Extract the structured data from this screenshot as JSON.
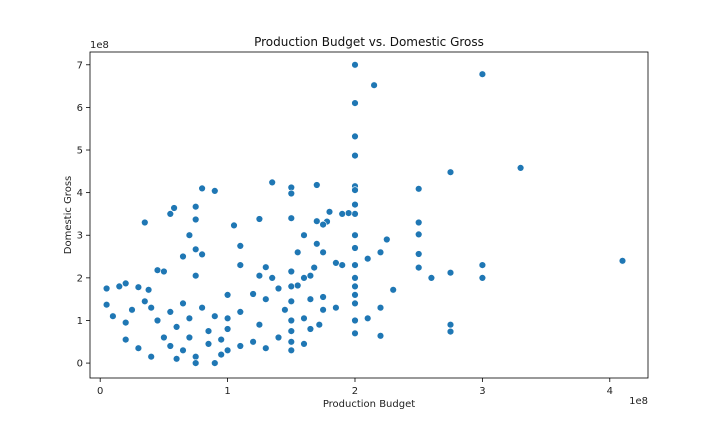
{
  "chart_data": {
    "type": "scatter",
    "title": "Production Budget vs. Domestic Gross",
    "xlabel": "Production Budget",
    "ylabel": "Domestic Gross",
    "x_offset_label": "1e8",
    "y_offset_label": "1e8",
    "xlim": [
      -0.08,
      4.3
    ],
    "ylim": [
      -0.35,
      7.3
    ],
    "x_ticks": [
      0,
      1,
      2,
      3,
      4
    ],
    "x_tick_labels": [
      "0",
      "1",
      "2",
      "3",
      "4"
    ],
    "y_ticks": [
      0,
      1,
      2,
      3,
      4,
      5,
      6,
      7
    ],
    "y_tick_labels": [
      "0",
      "1",
      "2",
      "3",
      "4",
      "5",
      "6",
      "7"
    ],
    "grid": false,
    "marker_color": "#1f77b4",
    "marker_edge_color": "#ffffff",
    "series": [
      {
        "points": [
          [
            2.0,
            7.0
          ],
          [
            3.0,
            6.78
          ],
          [
            2.0,
            6.1
          ],
          [
            2.15,
            6.52
          ],
          [
            2.0,
            5.32
          ],
          [
            2.0,
            4.87
          ],
          [
            3.3,
            4.58
          ],
          [
            2.75,
            4.48
          ],
          [
            4.1,
            2.4
          ],
          [
            2.0,
            4.15
          ],
          [
            2.0,
            4.06
          ],
          [
            2.5,
            4.09
          ],
          [
            3.0,
            2.3
          ],
          [
            3.0,
            2.0
          ],
          [
            2.75,
            2.12
          ],
          [
            2.75,
            0.9
          ],
          [
            2.75,
            0.74
          ],
          [
            2.5,
            3.3
          ],
          [
            2.5,
            3.02
          ],
          [
            2.5,
            2.56
          ],
          [
            2.5,
            2.24
          ],
          [
            2.6,
            2.0
          ],
          [
            2.3,
            1.72
          ],
          [
            2.25,
            2.9
          ],
          [
            2.2,
            2.6
          ],
          [
            2.2,
            1.3
          ],
          [
            2.2,
            0.64
          ],
          [
            2.1,
            2.45
          ],
          [
            2.1,
            1.05
          ],
          [
            2.0,
            3.72
          ],
          [
            2.0,
            3.5
          ],
          [
            2.0,
            3.0
          ],
          [
            2.0,
            2.7
          ],
          [
            2.0,
            2.3
          ],
          [
            2.0,
            2.0
          ],
          [
            2.0,
            1.8
          ],
          [
            2.0,
            1.6
          ],
          [
            2.0,
            1.4
          ],
          [
            2.0,
            1.0
          ],
          [
            2.0,
            0.7
          ],
          [
            1.95,
            3.52
          ],
          [
            1.9,
            3.5
          ],
          [
            1.9,
            2.3
          ],
          [
            1.85,
            2.35
          ],
          [
            1.85,
            1.3
          ],
          [
            1.8,
            3.55
          ],
          [
            1.78,
            3.32
          ],
          [
            1.75,
            3.25
          ],
          [
            1.75,
            2.6
          ],
          [
            1.75,
            1.55
          ],
          [
            1.75,
            1.25
          ],
          [
            1.72,
            0.9
          ],
          [
            1.7,
            4.18
          ],
          [
            1.7,
            3.33
          ],
          [
            1.7,
            2.8
          ],
          [
            1.68,
            2.24
          ],
          [
            1.65,
            2.05
          ],
          [
            1.65,
            1.5
          ],
          [
            1.65,
            0.8
          ],
          [
            1.6,
            3.0
          ],
          [
            1.6,
            2.0
          ],
          [
            1.6,
            1.05
          ],
          [
            1.6,
            0.45
          ],
          [
            1.55,
            2.6
          ],
          [
            1.55,
            1.82
          ],
          [
            1.5,
            4.12
          ],
          [
            1.5,
            3.98
          ],
          [
            1.5,
            3.4
          ],
          [
            1.5,
            2.15
          ],
          [
            1.5,
            1.8
          ],
          [
            1.5,
            1.45
          ],
          [
            1.5,
            1.0
          ],
          [
            1.5,
            0.75
          ],
          [
            1.5,
            0.5
          ],
          [
            1.5,
            0.3
          ],
          [
            1.45,
            1.25
          ],
          [
            1.4,
            1.75
          ],
          [
            1.4,
            0.6
          ],
          [
            1.35,
            4.24
          ],
          [
            1.35,
            2.0
          ],
          [
            1.3,
            2.25
          ],
          [
            1.3,
            1.5
          ],
          [
            1.3,
            0.35
          ],
          [
            1.25,
            3.38
          ],
          [
            1.25,
            2.05
          ],
          [
            1.25,
            0.9
          ],
          [
            1.2,
            1.62
          ],
          [
            1.2,
            0.5
          ],
          [
            1.1,
            2.75
          ],
          [
            1.1,
            2.3
          ],
          [
            1.1,
            1.2
          ],
          [
            1.1,
            0.4
          ],
          [
            1.05,
            3.23
          ],
          [
            1.0,
            1.6
          ],
          [
            1.0,
            1.05
          ],
          [
            1.0,
            0.8
          ],
          [
            1.0,
            0.3
          ],
          [
            0.9,
            4.04
          ],
          [
            0.8,
            4.1
          ],
          [
            0.75,
            3.67
          ],
          [
            0.75,
            3.37
          ],
          [
            0.7,
            3.0
          ],
          [
            0.58,
            3.64
          ],
          [
            0.55,
            3.5
          ],
          [
            0.8,
            2.55
          ],
          [
            0.75,
            2.67
          ],
          [
            0.65,
            2.5
          ],
          [
            0.35,
            3.3
          ],
          [
            0.45,
            2.18
          ],
          [
            0.5,
            2.15
          ],
          [
            0.75,
            2.05
          ],
          [
            0.2,
            1.87
          ],
          [
            0.15,
            1.8
          ],
          [
            0.05,
            1.75
          ],
          [
            0.3,
            1.78
          ],
          [
            0.38,
            1.72
          ],
          [
            0.05,
            1.37
          ],
          [
            0.35,
            1.45
          ],
          [
            0.4,
            1.3
          ],
          [
            0.1,
            1.1
          ],
          [
            0.2,
            0.95
          ],
          [
            0.25,
            1.25
          ],
          [
            0.45,
            1.0
          ],
          [
            0.55,
            1.2
          ],
          [
            0.65,
            1.4
          ],
          [
            0.7,
            1.05
          ],
          [
            0.8,
            1.3
          ],
          [
            0.9,
            1.1
          ],
          [
            0.6,
            0.85
          ],
          [
            0.7,
            0.6
          ],
          [
            0.85,
            0.75
          ],
          [
            0.95,
            0.55
          ],
          [
            0.5,
            0.6
          ],
          [
            0.55,
            0.4
          ],
          [
            0.65,
            0.3
          ],
          [
            0.75,
            0.15
          ],
          [
            0.85,
            0.45
          ],
          [
            0.95,
            0.2
          ],
          [
            0.9,
            0.0
          ],
          [
            0.75,
            0.0
          ],
          [
            0.6,
            0.1
          ],
          [
            0.4,
            0.15
          ],
          [
            0.3,
            0.35
          ],
          [
            0.2,
            0.55
          ]
        ]
      }
    ]
  }
}
